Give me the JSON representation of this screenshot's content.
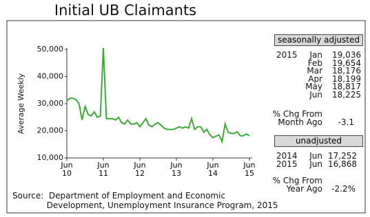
{
  "chart_data": {
    "type": "line",
    "title": "Initial UB Claimants",
    "y_label": "Average Weekly",
    "categories": [
      "Jun\n10",
      null,
      null,
      null,
      null,
      null,
      null,
      null,
      null,
      null,
      null,
      null,
      "Jun\n11",
      null,
      null,
      null,
      null,
      null,
      null,
      null,
      null,
      null,
      null,
      null,
      "Jun\n12",
      null,
      null,
      null,
      null,
      null,
      null,
      null,
      null,
      null,
      null,
      null,
      "Jun\n13",
      null,
      null,
      null,
      null,
      null,
      null,
      null,
      null,
      null,
      null,
      null,
      "Jun\n14",
      null,
      null,
      null,
      null,
      null,
      null,
      null,
      null,
      null,
      null,
      null,
      "Jun\n15"
    ],
    "values": [
      31000,
      32000,
      32000,
      31500,
      30000,
      24000,
      29000,
      26000,
      25500,
      27000,
      25000,
      25500,
      50500,
      24500,
      24500,
      24500,
      24000,
      25000,
      23000,
      22500,
      24000,
      22500,
      22500,
      23000,
      21500,
      23000,
      24500,
      22000,
      21500,
      22500,
      23000,
      22000,
      21000,
      20500,
      20500,
      20500,
      21000,
      21500,
      21000,
      21500,
      21000,
      24500,
      20500,
      21500,
      21500,
      19500,
      20500,
      18500,
      17500,
      18000,
      18500,
      16000,
      22500,
      19500,
      19000,
      19036,
      19654,
      18176,
      18199,
      18817,
      18225
    ],
    "color": "#3aaa35",
    "ylim": [
      10000,
      50000
    ],
    "yticks": [
      {
        "value": 10000,
        "label": "10,000"
      },
      {
        "value": 20000,
        "label": "20,000"
      },
      {
        "value": 30000,
        "label": "30,000"
      },
      {
        "value": 40000,
        "label": "40,000"
      },
      {
        "value": 50000,
        "label": "50,000"
      }
    ],
    "source": "Source:  Department of Employment and Economic\n             Development, Unemployment Insurance Program, 2015"
  },
  "side_panel": {
    "seasonal_header": "seasonally adjusted",
    "seasonal_rows": [
      [
        "2015",
        "Jan",
        "19,036"
      ],
      [
        "",
        "Feb",
        "19,654"
      ],
      [
        "",
        "Mar",
        "18,176"
      ],
      [
        "",
        "Apr",
        "18,199"
      ],
      [
        "",
        "May",
        "18,817"
      ],
      [
        "",
        "Jun",
        "18,225"
      ]
    ],
    "month_chg_label": "% Chg From\nMonth Ago",
    "month_chg": "-3.1",
    "unadjusted_header": "unadjusted",
    "unadjusted_rows": [
      [
        "2014",
        "Jun",
        "17,252"
      ],
      [
        "2015",
        "Jun",
        "16,868"
      ]
    ],
    "year_chg_label": "% Chg From\nYear Ago",
    "year_chg": "-2.2%"
  }
}
